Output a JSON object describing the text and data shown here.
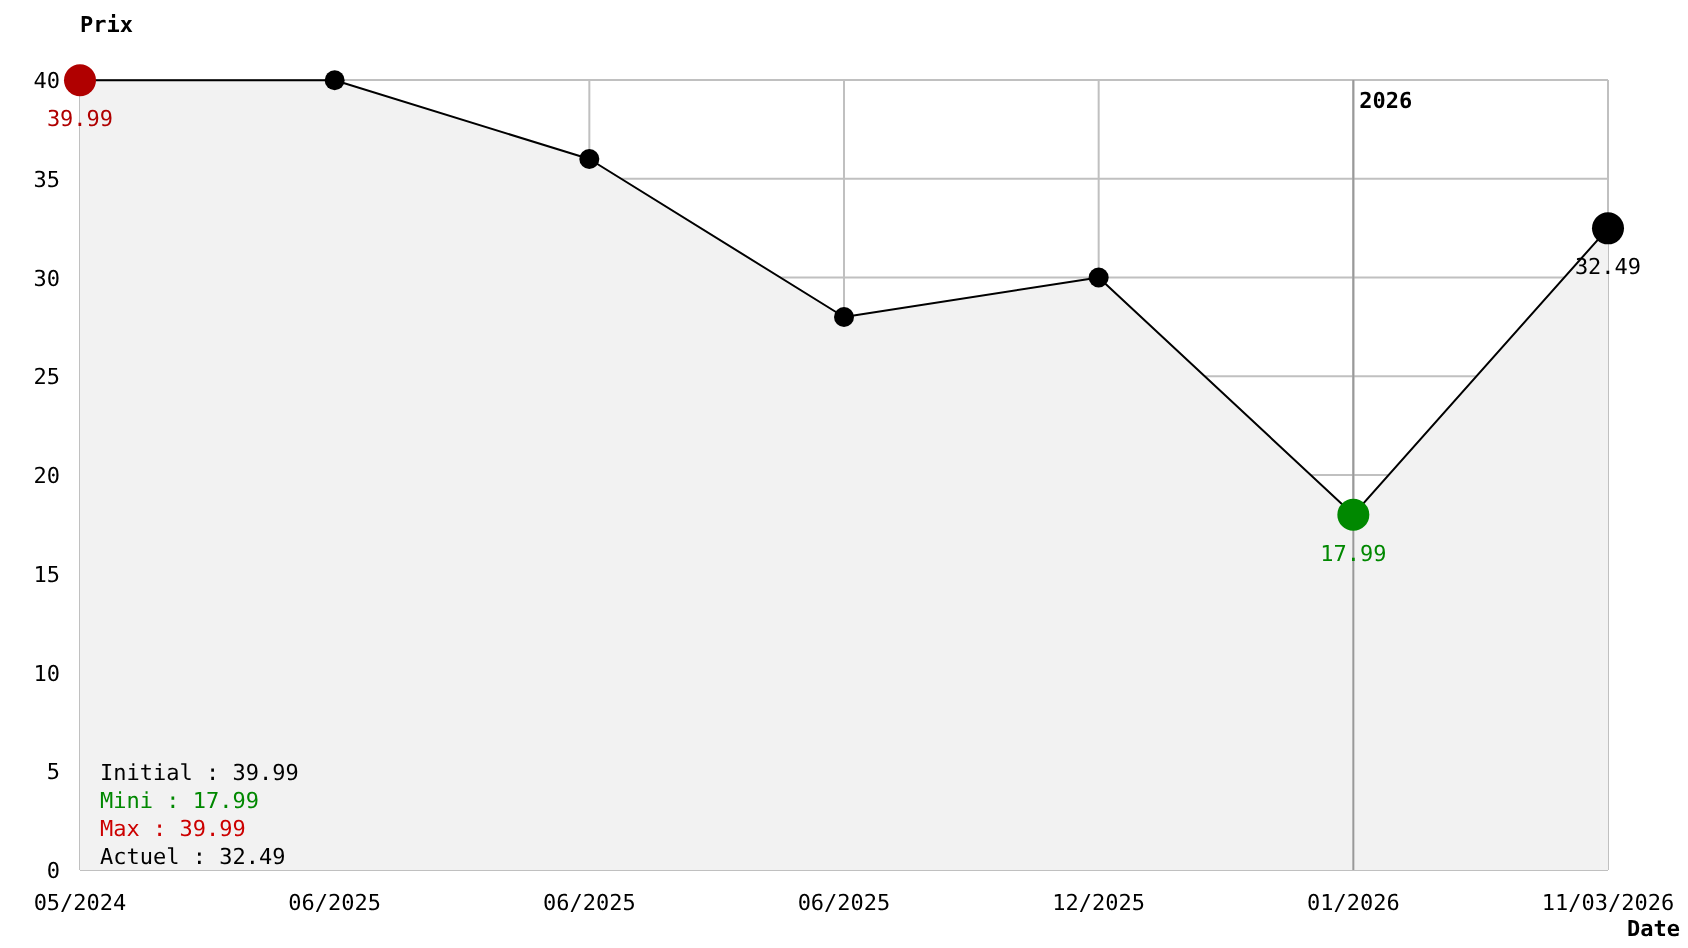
{
  "chart_data": {
    "type": "area",
    "xlabel": "Date",
    "ylabel": "Prix",
    "categories": [
      "05/2024",
      "06/2025",
      "06/2025",
      "06/2025",
      "12/2025",
      "01/2026",
      "11/03/2026"
    ],
    "series": [
      {
        "color": "#000000",
        "colors": [
          "#b00000",
          "#000000",
          "#000000",
          "#000000",
          "#000000",
          "#008800",
          "#000000"
        ],
        "values": [
          39.99,
          39.99,
          36,
          28,
          30,
          17.99,
          32.49
        ],
        "value_labels": [
          "39.99",
          null,
          null,
          null,
          null,
          "17.99",
          "32.49"
        ]
      }
    ],
    "ylim": [
      0,
      40
    ],
    "yticks": [
      0,
      5,
      10,
      15,
      20,
      25,
      30,
      35,
      40
    ],
    "grid": true,
    "marker": "circle",
    "ref_lines": [
      {
        "axis": "x",
        "value": "01/2026",
        "label": "2026",
        "color": "#999999"
      }
    ],
    "annotations": [
      "Initial : 39.99",
      "Mini : 17.99",
      "Max : 39.99",
      "Actuel : 32.49"
    ]
  }
}
